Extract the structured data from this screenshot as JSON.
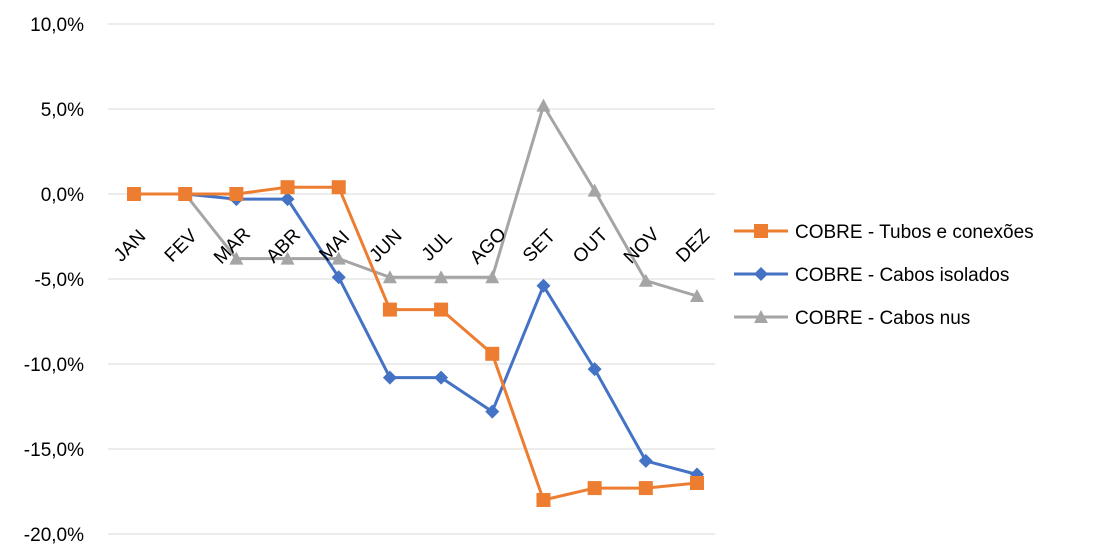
{
  "chart_data": {
    "type": "line",
    "title": "",
    "xlabel": "",
    "ylabel": "",
    "categories": [
      "JAN",
      "FEV",
      "MAR",
      "ABR",
      "MAI",
      "JUN",
      "JUL",
      "AGO",
      "SET",
      "OUT",
      "NOV",
      "DEZ"
    ],
    "ylim": [
      -20,
      10
    ],
    "yticks": [
      10,
      5,
      0,
      -5,
      -10,
      -15,
      -20
    ],
    "ytick_labels": [
      "10,0%",
      "5,0%",
      "0,0%",
      "-5,0%",
      "-10,0%",
      "-15,0%",
      "-20,0%"
    ],
    "grid": "horizontal",
    "legend_position": "right",
    "series": [
      {
        "name": "COBRE - Tubos e conexões",
        "color": "#ED7D31",
        "marker": "square",
        "values": [
          0.0,
          0.0,
          0.0,
          0.4,
          0.4,
          -6.8,
          -6.8,
          -9.4,
          -18.0,
          -17.3,
          -17.3,
          -17.0
        ]
      },
      {
        "name": "COBRE - Cabos isolados",
        "color": "#4472C4",
        "marker": "diamond",
        "values": [
          0.0,
          0.0,
          -0.3,
          -0.3,
          -4.9,
          -10.8,
          -10.8,
          -12.8,
          -5.4,
          -10.3,
          -15.7,
          -16.5
        ]
      },
      {
        "name": "COBRE - Cabos nus",
        "color": "#A5A5A5",
        "marker": "triangle",
        "values": [
          0.0,
          0.0,
          -3.8,
          -3.8,
          -3.8,
          -4.9,
          -4.9,
          -4.9,
          5.2,
          0.2,
          -5.1,
          -6.0
        ]
      }
    ]
  }
}
